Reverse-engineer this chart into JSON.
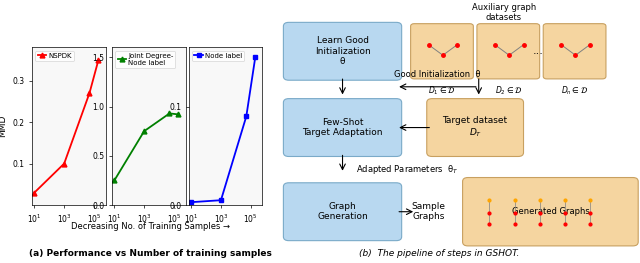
{
  "plot1": {
    "label": "NSPDK",
    "color": "red",
    "marker": "^",
    "x": [
      10,
      1000,
      50000,
      200000
    ],
    "y": [
      0.03,
      0.1,
      0.27,
      0.35
    ],
    "ylim": [
      0,
      0.38
    ],
    "yticks": [
      0.1,
      0.2,
      0.3
    ]
  },
  "plot2": {
    "label": "Joint Degree-\nNode label",
    "color": "green",
    "marker": "^",
    "x": [
      10,
      1000,
      50000,
      200000
    ],
    "y": [
      0.25,
      0.75,
      0.93,
      0.92
    ],
    "ylim": [
      0.0,
      1.6
    ],
    "yticks": [
      0.0,
      0.5,
      1.0,
      1.5
    ]
  },
  "plot3": {
    "label": "Node label",
    "color": "blue",
    "marker": "s",
    "x": [
      10,
      1000,
      50000,
      200000
    ],
    "y": [
      0.003,
      0.005,
      0.09,
      0.15
    ],
    "ylim": [
      0.0,
      0.16
    ],
    "yticks": [
      0.0,
      0.1
    ]
  },
  "ylabel": "MMD",
  "xlabel": "Decreasing No. of Training Samples →",
  "xticks": [
    10,
    1000,
    100000
  ],
  "xticklabels": [
    "$10^1$",
    "$10^3$",
    "$10^5$"
  ],
  "title_a": "(a) Performance vs Number of training samples",
  "title_b": "(b)  The pipeline of steps in GSHOT.",
  "fig_width": 6.4,
  "fig_height": 2.63,
  "dpi": 100,
  "box_blue": "#b8d8f0",
  "box_orange": "#f5d5a0",
  "box_edge_blue": "#7aaac8",
  "box_edge_orange": "#c8a060"
}
